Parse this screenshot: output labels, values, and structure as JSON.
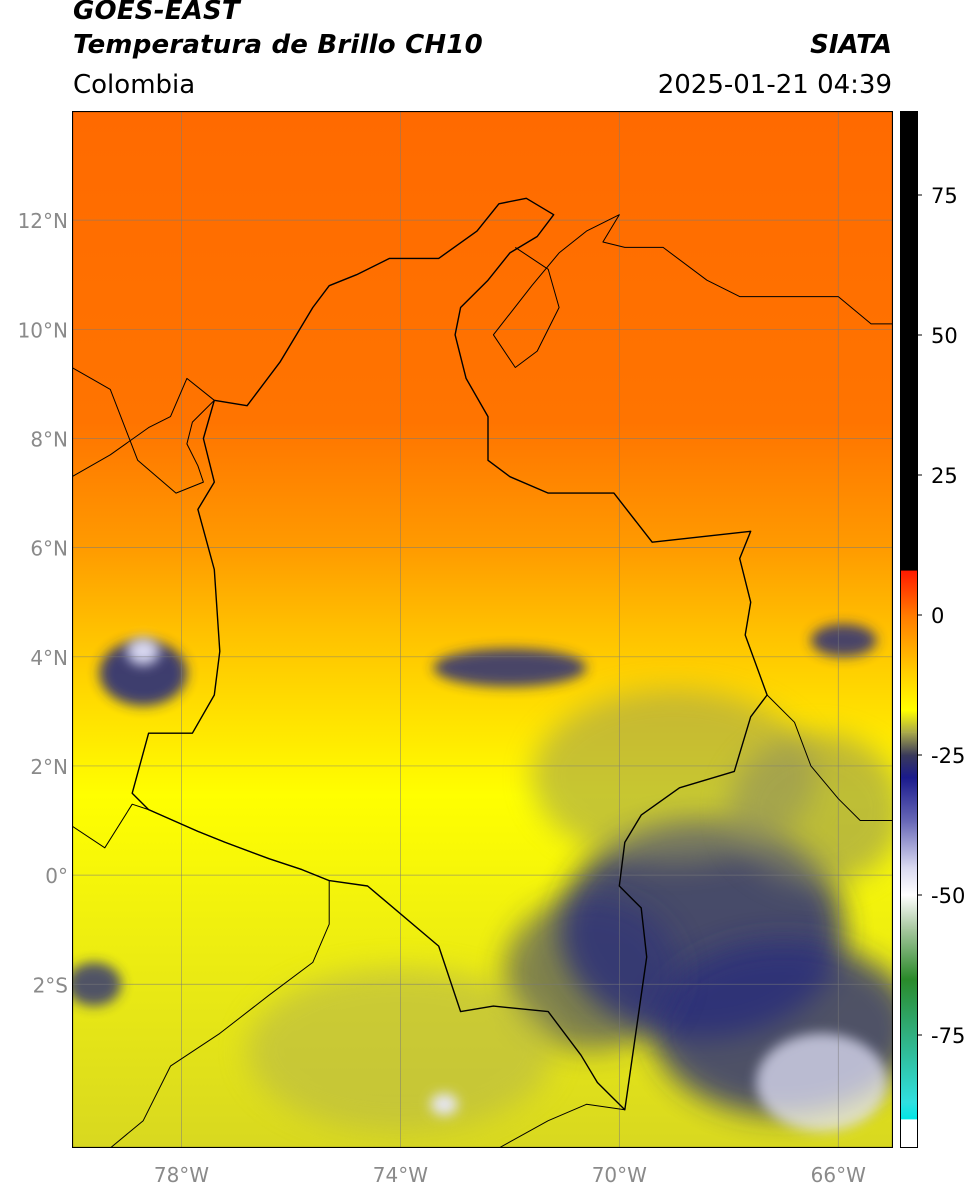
{
  "header": {
    "satellite": "GOES-EAST",
    "product": "Temperatura de Brillo CH10",
    "organization": "SIATA",
    "region": "Colombia",
    "timestamp": "2025-01-21 04:39"
  },
  "map": {
    "lon_range": [
      -80,
      -65
    ],
    "lat_range": [
      -5,
      14
    ],
    "lat_ticks": [
      {
        "value": 12,
        "label": "12°N"
      },
      {
        "value": 10,
        "label": "10°N"
      },
      {
        "value": 8,
        "label": "8°N"
      },
      {
        "value": 6,
        "label": "6°N"
      },
      {
        "value": 4,
        "label": "4°N"
      },
      {
        "value": 2,
        "label": "2°N"
      },
      {
        "value": 0,
        "label": "0°"
      },
      {
        "value": -2,
        "label": "2°S"
      }
    ],
    "lon_ticks": [
      {
        "value": -78,
        "label": "78°W"
      },
      {
        "value": -74,
        "label": "74°W"
      },
      {
        "value": -70,
        "label": "70°W"
      },
      {
        "value": -66,
        "label": "66°W"
      }
    ],
    "grid": true,
    "colors": {
      "warm": "#ff6a00",
      "mid": "#ffd400",
      "cool": "#f2f200",
      "cold": "#2a2f7a",
      "coldest": "#e8e8ff"
    }
  },
  "colorbar": {
    "range": [
      -95,
      90
    ],
    "ticks": [
      {
        "value": 75,
        "label": "75"
      },
      {
        "value": 50,
        "label": "50"
      },
      {
        "value": 25,
        "label": "25"
      },
      {
        "value": 0,
        "label": "0"
      },
      {
        "value": -25,
        "label": "-25"
      },
      {
        "value": -50,
        "label": "-50"
      },
      {
        "value": -75,
        "label": "-75"
      }
    ],
    "stops": [
      {
        "value": 90,
        "color": "#000000"
      },
      {
        "value": 8,
        "color": "#000000"
      },
      {
        "value": 7.9,
        "color": "#ff1a00"
      },
      {
        "value": 0,
        "color": "#ff7a00"
      },
      {
        "value": -10,
        "color": "#ffcc00"
      },
      {
        "value": -17,
        "color": "#ffff00"
      },
      {
        "value": -21,
        "color": "#a8a84a"
      },
      {
        "value": -25,
        "color": "#3a3a5a"
      },
      {
        "value": -29,
        "color": "#1a1a8c"
      },
      {
        "value": -37,
        "color": "#6a6ab8"
      },
      {
        "value": -45,
        "color": "#d8d8f0"
      },
      {
        "value": -50,
        "color": "#ffffff"
      },
      {
        "value": -56,
        "color": "#a8c8a0"
      },
      {
        "value": -65,
        "color": "#2a8a2a"
      },
      {
        "value": -75,
        "color": "#30b080"
      },
      {
        "value": -87,
        "color": "#30e0e0"
      },
      {
        "value": -90,
        "color": "#00e5e5"
      },
      {
        "value": -90.1,
        "color": "#ffffff"
      },
      {
        "value": -95,
        "color": "#ffffff"
      }
    ]
  },
  "boundaries": {
    "colombia": [
      [
        -77.4,
        8.7
      ],
      [
        -76.8,
        8.6
      ],
      [
        -76.2,
        9.4
      ],
      [
        -75.6,
        10.4
      ],
      [
        -75.3,
        10.8
      ],
      [
        -74.8,
        11.0
      ],
      [
        -74.2,
        11.3
      ],
      [
        -73.3,
        11.3
      ],
      [
        -72.6,
        11.8
      ],
      [
        -72.2,
        12.3
      ],
      [
        -71.7,
        12.4
      ],
      [
        -71.2,
        12.1
      ],
      [
        -71.5,
        11.7
      ],
      [
        -72.0,
        11.4
      ],
      [
        -72.4,
        10.9
      ],
      [
        -72.9,
        10.4
      ],
      [
        -73.0,
        9.9
      ],
      [
        -72.8,
        9.1
      ],
      [
        -72.4,
        8.4
      ],
      [
        -72.4,
        7.6
      ],
      [
        -72.0,
        7.3
      ],
      [
        -71.3,
        7.0
      ],
      [
        -70.1,
        7.0
      ],
      [
        -69.4,
        6.1
      ],
      [
        -67.6,
        6.3
      ],
      [
        -67.8,
        5.8
      ],
      [
        -67.6,
        5.0
      ],
      [
        -67.7,
        4.4
      ],
      [
        -67.3,
        3.3
      ],
      [
        -67.6,
        2.9
      ],
      [
        -67.9,
        1.9
      ],
      [
        -68.9,
        1.6
      ],
      [
        -69.6,
        1.1
      ],
      [
        -69.9,
        0.6
      ],
      [
        -70.0,
        -0.2
      ],
      [
        -69.6,
        -0.6
      ],
      [
        -69.5,
        -1.5
      ],
      [
        -69.9,
        -4.3
      ],
      [
        -70.4,
        -3.8
      ],
      [
        -70.7,
        -3.3
      ],
      [
        -71.3,
        -2.5
      ],
      [
        -72.3,
        -2.4
      ],
      [
        -72.9,
        -2.5
      ],
      [
        -73.3,
        -1.3
      ],
      [
        -74.6,
        -0.2
      ],
      [
        -75.3,
        -0.1
      ],
      [
        -75.8,
        0.1
      ],
      [
        -76.4,
        0.3
      ],
      [
        -77.2,
        0.6
      ],
      [
        -77.7,
        0.8
      ],
      [
        -78.6,
        1.2
      ],
      [
        -78.9,
        1.5
      ],
      [
        -78.6,
        2.6
      ],
      [
        -77.8,
        2.6
      ],
      [
        -77.4,
        3.3
      ],
      [
        -77.3,
        4.1
      ],
      [
        -77.4,
        5.6
      ],
      [
        -77.7,
        6.7
      ],
      [
        -77.4,
        7.2
      ],
      [
        -77.6,
        8.0
      ],
      [
        -77.4,
        8.7
      ]
    ],
    "panama": [
      [
        -80,
        7.3
      ],
      [
        -79.3,
        7.7
      ],
      [
        -78.6,
        8.2
      ],
      [
        -78.2,
        8.4
      ],
      [
        -77.9,
        9.1
      ],
      [
        -77.4,
        8.7
      ],
      [
        -77.8,
        8.3
      ],
      [
        -77.9,
        7.9
      ],
      [
        -77.7,
        7.5
      ],
      [
        -77.6,
        7.2
      ],
      [
        -78.1,
        7.0
      ],
      [
        -78.8,
        7.6
      ],
      [
        -79.3,
        8.9
      ],
      [
        -80,
        9.3
      ]
    ],
    "ecuador": [
      [
        -80,
        0.9
      ],
      [
        -79.4,
        0.5
      ],
      [
        -78.9,
        1.3
      ],
      [
        -78.6,
        1.2
      ],
      [
        -77.7,
        0.8
      ],
      [
        -77.2,
        0.6
      ],
      [
        -76.4,
        0.3
      ],
      [
        -75.8,
        0.1
      ],
      [
        -75.3,
        -0.1
      ],
      [
        -75.3,
        -0.9
      ],
      [
        -75.6,
        -1.6
      ],
      [
        -76.4,
        -2.2
      ],
      [
        -77.3,
        -2.9
      ],
      [
        -78.2,
        -3.5
      ],
      [
        -78.7,
        -4.5
      ],
      [
        -79.3,
        -5
      ],
      [
        -80,
        -5
      ]
    ],
    "peru_brazil": [
      [
        -69.9,
        -4.3
      ],
      [
        -70.6,
        -4.2
      ],
      [
        -71.3,
        -4.5
      ],
      [
        -72.2,
        -5
      ],
      [
        -73.0,
        -5
      ]
    ],
    "venezuela_coast": [
      [
        -71.9,
        11.5
      ],
      [
        -71.3,
        11.1
      ],
      [
        -71.1,
        10.4
      ],
      [
        -71.5,
        9.6
      ],
      [
        -71.9,
        9.3
      ],
      [
        -72.3,
        9.9
      ],
      [
        -71.6,
        10.8
      ],
      [
        -71.1,
        11.4
      ],
      [
        -70.6,
        11.8
      ],
      [
        -70.0,
        12.1
      ],
      [
        -70.3,
        11.6
      ],
      [
        -69.9,
        11.5
      ],
      [
        -69.2,
        11.5
      ],
      [
        -68.4,
        10.9
      ],
      [
        -67.8,
        10.6
      ],
      [
        -66.9,
        10.6
      ],
      [
        -66.0,
        10.6
      ],
      [
        -65.4,
        10.1
      ],
      [
        -65,
        10.1
      ]
    ],
    "venezuela_brazil": [
      [
        -67.3,
        3.3
      ],
      [
        -66.8,
        2.8
      ],
      [
        -66.5,
        2.0
      ],
      [
        -66.0,
        1.4
      ],
      [
        -65.6,
        1.0
      ],
      [
        -65,
        1.0
      ]
    ]
  }
}
